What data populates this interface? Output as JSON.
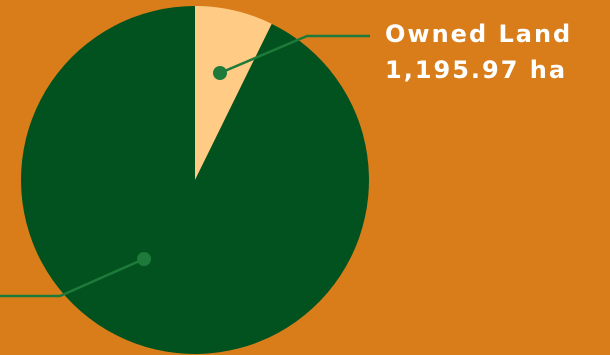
{
  "colors": {
    "background": "#D97D1A",
    "leader_line": "#1E7A3A",
    "leader_dot": "#1E7A3A"
  },
  "chart_data": {
    "type": "pie",
    "title": "",
    "start_angle_deg": 0,
    "direction": "clockwise",
    "legend": "none",
    "slices": [
      {
        "name": "Owned Land",
        "value": 1195.97,
        "value_label": "1,195.97 ha",
        "color": "#FFCB85",
        "annotated": true
      },
      {
        "name": "",
        "value": 15255,
        "value_label": "",
        "color": "#01521F",
        "annotated": false
      }
    ]
  }
}
